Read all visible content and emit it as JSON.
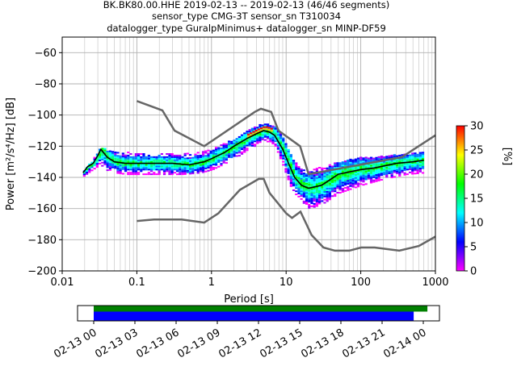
{
  "title_lines": [
    "BK.BK80.00.HHE   2019-02-13 -- 2019-02-13  (46/46 segments)",
    "sensor_type CMG-3T sensor_sn T310034",
    "datalogger_type GuralpMinimus+ datalogger_sn MINP-DF59"
  ],
  "chart_data": {
    "type": "heatmap",
    "xlabel": "Period [s]",
    "ylabel": "Power [m²/s⁴/Hz] [dB]",
    "xscale": "log",
    "xlim": [
      0.01,
      1000
    ],
    "ylim": [
      -200,
      -50
    ],
    "x_ticks": [
      "0.01",
      "0.1",
      "1",
      "10",
      "100",
      "1000"
    ],
    "y_ticks": [
      "-60",
      "-80",
      "-100",
      "-120",
      "-140",
      "-160",
      "-180",
      "-200"
    ],
    "grid": true,
    "colorbar": {
      "label": "[%]",
      "range": [
        0,
        30
      ],
      "ticks": [
        "0",
        "5",
        "10",
        "15",
        "20",
        "25",
        "30"
      ],
      "colors": [
        "#ff00ff",
        "#0000ff",
        "#00ffff",
        "#00ff00",
        "#ffff00",
        "#ff0000"
      ]
    },
    "mode_curve": [
      [
        0.019,
        -137
      ],
      [
        0.022,
        -133
      ],
      [
        0.026,
        -131
      ],
      [
        0.03,
        -126
      ],
      [
        0.033,
        -122
      ],
      [
        0.04,
        -127
      ],
      [
        0.05,
        -130
      ],
      [
        0.07,
        -131
      ],
      [
        0.1,
        -131
      ],
      [
        0.15,
        -131
      ],
      [
        0.3,
        -131
      ],
      [
        0.5,
        -132
      ],
      [
        0.8,
        -130
      ],
      [
        1.0,
        -128
      ],
      [
        1.5,
        -124
      ],
      [
        2.0,
        -120
      ],
      [
        3.0,
        -115
      ],
      [
        4.0,
        -112
      ],
      [
        5.0,
        -110
      ],
      [
        6.0,
        -111
      ],
      [
        7.0,
        -113
      ],
      [
        9.0,
        -122
      ],
      [
        11.0,
        -132
      ],
      [
        13.0,
        -140
      ],
      [
        16.0,
        -145
      ],
      [
        20.0,
        -147
      ],
      [
        30.0,
        -145
      ],
      [
        50.0,
        -138
      ],
      [
        100.0,
        -135
      ],
      [
        150.0,
        -134
      ],
      [
        300.0,
        -131
      ],
      [
        500.0,
        -130
      ],
      [
        700.0,
        -129
      ]
    ],
    "nhnm": [
      [
        0.1,
        -91
      ],
      [
        0.22,
        -97
      ],
      [
        0.32,
        -110
      ],
      [
        0.8,
        -120
      ],
      [
        3.8,
        -98
      ],
      [
        4.6,
        -96
      ],
      [
        6.3,
        -98
      ],
      [
        7.9,
        -110
      ],
      [
        15.4,
        -120
      ],
      [
        20.0,
        -138
      ],
      [
        354.8,
        -127
      ],
      [
        1000.0,
        -113
      ]
    ],
    "nlnm": [
      [
        0.1,
        -168
      ],
      [
        0.17,
        -167
      ],
      [
        0.4,
        -167
      ],
      [
        0.8,
        -169
      ],
      [
        1.24,
        -163
      ],
      [
        2.4,
        -148
      ],
      [
        4.3,
        -141
      ],
      [
        5.0,
        -141
      ],
      [
        6.0,
        -150
      ],
      [
        10.0,
        -163
      ],
      [
        12.0,
        -166
      ],
      [
        15.6,
        -162
      ],
      [
        21.9,
        -177
      ],
      [
        31.6,
        -185
      ],
      [
        45.0,
        -187
      ],
      [
        70.0,
        -187
      ],
      [
        101.0,
        -185
      ],
      [
        154.0,
        -185
      ],
      [
        328.0,
        -187
      ],
      [
        600.0,
        -184
      ],
      [
        1000.0,
        -178
      ]
    ],
    "spread": [
      [
        0.019,
        -139,
        -135
      ],
      [
        0.025,
        -135,
        -129
      ],
      [
        0.031,
        -132,
        -121
      ],
      [
        0.035,
        -133,
        -121
      ],
      [
        0.04,
        -136,
        -123
      ],
      [
        0.05,
        -137,
        -124
      ],
      [
        0.07,
        -138,
        -124
      ],
      [
        0.1,
        -138,
        -124
      ],
      [
        0.2,
        -138,
        -125
      ],
      [
        0.4,
        -138,
        -125
      ],
      [
        0.7,
        -137,
        -124
      ],
      [
        1.0,
        -135,
        -122
      ],
      [
        2.0,
        -128,
        -115
      ],
      [
        3.0,
        -122,
        -110
      ],
      [
        4.0,
        -119,
        -107
      ],
      [
        5.0,
        -117,
        -105
      ],
      [
        6.0,
        -117,
        -106
      ],
      [
        7.0,
        -120,
        -107
      ],
      [
        9.0,
        -133,
        -115
      ],
      [
        11.0,
        -145,
        -125
      ],
      [
        14.0,
        -153,
        -133
      ],
      [
        20.0,
        -160,
        -135
      ],
      [
        30.0,
        -157,
        -133
      ],
      [
        50.0,
        -150,
        -130
      ],
      [
        100.0,
        -145,
        -127
      ],
      [
        200.0,
        -141,
        -126
      ],
      [
        400.0,
        -138,
        -125
      ],
      [
        700.0,
        -137,
        -124
      ]
    ],
    "timeline": {
      "tick_labels": [
        "02-13 00",
        "02-13 03",
        "02-13 06",
        "02-13 09",
        "02-13 12",
        "02-13 15",
        "02-13 18",
        "02-13 21",
        "02-14 00"
      ],
      "green_bar": [
        0,
        24.3
      ],
      "blue_bar": [
        0,
        23.3
      ],
      "colors": {
        "green": "#008000",
        "blue": "#0000ff"
      }
    }
  }
}
